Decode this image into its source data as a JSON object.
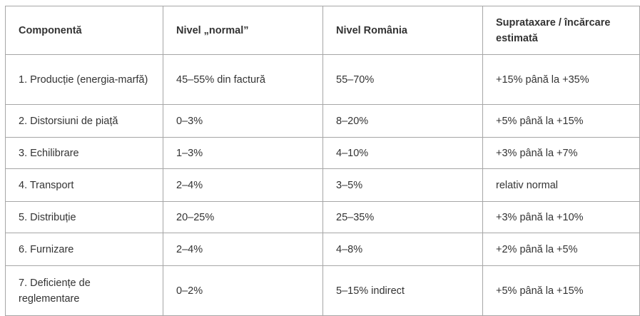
{
  "table": {
    "header": [
      "Componentă",
      "Nivel „normal”",
      "Nivel România",
      "Suprataxare / încărcare estimată"
    ],
    "rows": [
      [
        "1. Producție (energia-marfă)",
        "45–55% din factură",
        "55–70%",
        "+15% până la +35%"
      ],
      [
        "2. Distorsiuni de piață",
        "0–3%",
        "8–20%",
        "+5% până la +15%"
      ],
      [
        "3. Echilibrare",
        "1–3%",
        "4–10%",
        "+3% până la +7%"
      ],
      [
        "4. Transport",
        "2–4%",
        "3–5%",
        "relativ normal"
      ],
      [
        "5. Distribuție",
        "20–25%",
        "25–35%",
        "+3% până la +10%"
      ],
      [
        "6. Furnizare",
        "2–4%",
        "4–8%",
        "+2% până la +5%"
      ],
      [
        "7. Deficiențe de reglementare",
        "0–2%",
        "5–15% indirect",
        "+5% până la +15%"
      ]
    ]
  }
}
